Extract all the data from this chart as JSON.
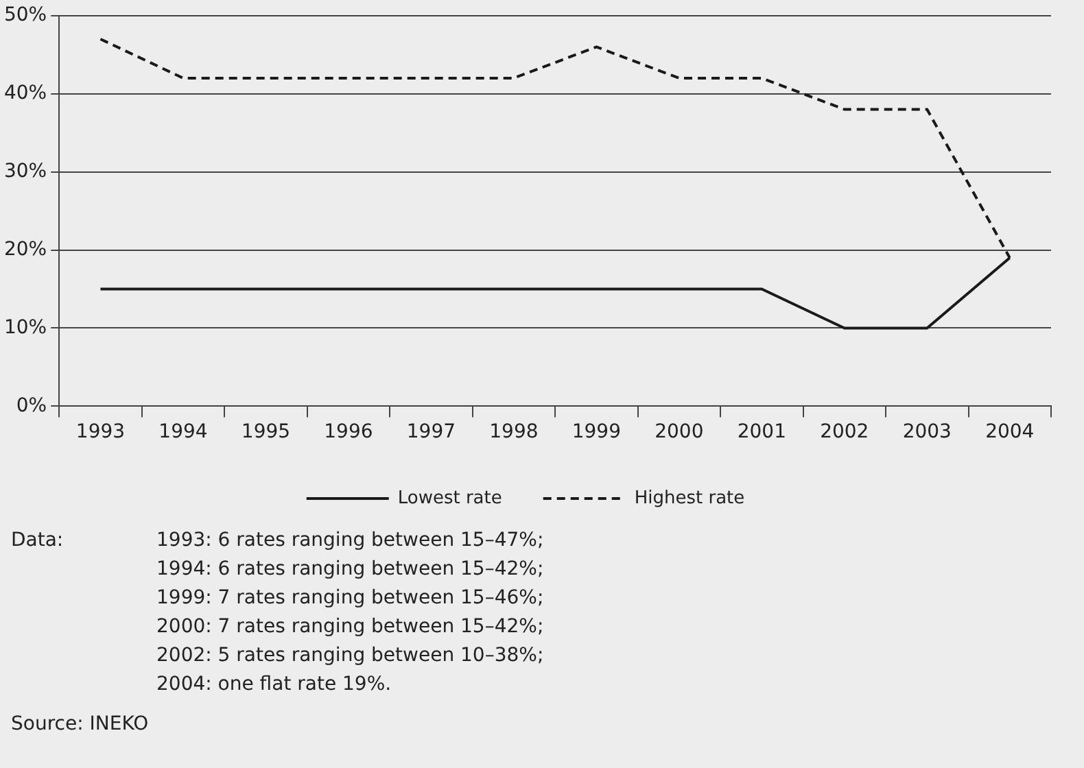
{
  "chart_data": {
    "type": "line",
    "categories": [
      "1993",
      "1994",
      "1995",
      "1996",
      "1997",
      "1998",
      "1999",
      "2000",
      "2001",
      "2002",
      "2003",
      "2004"
    ],
    "series": [
      {
        "name": "Lowest rate",
        "color": "#1a1a1a",
        "line_style": "solid",
        "values": [
          15,
          15,
          15,
          15,
          15,
          15,
          15,
          15,
          15,
          10,
          10,
          19
        ]
      },
      {
        "name": "Highest rate",
        "color": "#1a1a1a",
        "line_style": "dashed",
        "values": [
          47,
          42,
          42,
          42,
          42,
          42,
          46,
          42,
          42,
          38,
          38,
          19
        ]
      }
    ],
    "ylim": [
      0,
      50
    ],
    "yticks": [
      {
        "value": 0,
        "label": "0%"
      },
      {
        "value": 10,
        "label": "10%"
      },
      {
        "value": 20,
        "label": "20%"
      },
      {
        "value": 30,
        "label": "30%"
      },
      {
        "value": 40,
        "label": "40%"
      },
      {
        "value": 50,
        "label": "50%"
      }
    ],
    "grid": "y",
    "legend": "bottom",
    "marker": "none",
    "annotations": [
      "Data:",
      "1993: 6 rates ranging between 15–47%;",
      "1994: 6 rates ranging between 15–42%;",
      "1999: 7 rates ranging between 15–46%;",
      "2000: 7 rates ranging between 15–42%;",
      "2002: 5 rates ranging between 10–38%;",
      "2004: one flat rate 19%.",
      "Source: INEKO"
    ]
  }
}
